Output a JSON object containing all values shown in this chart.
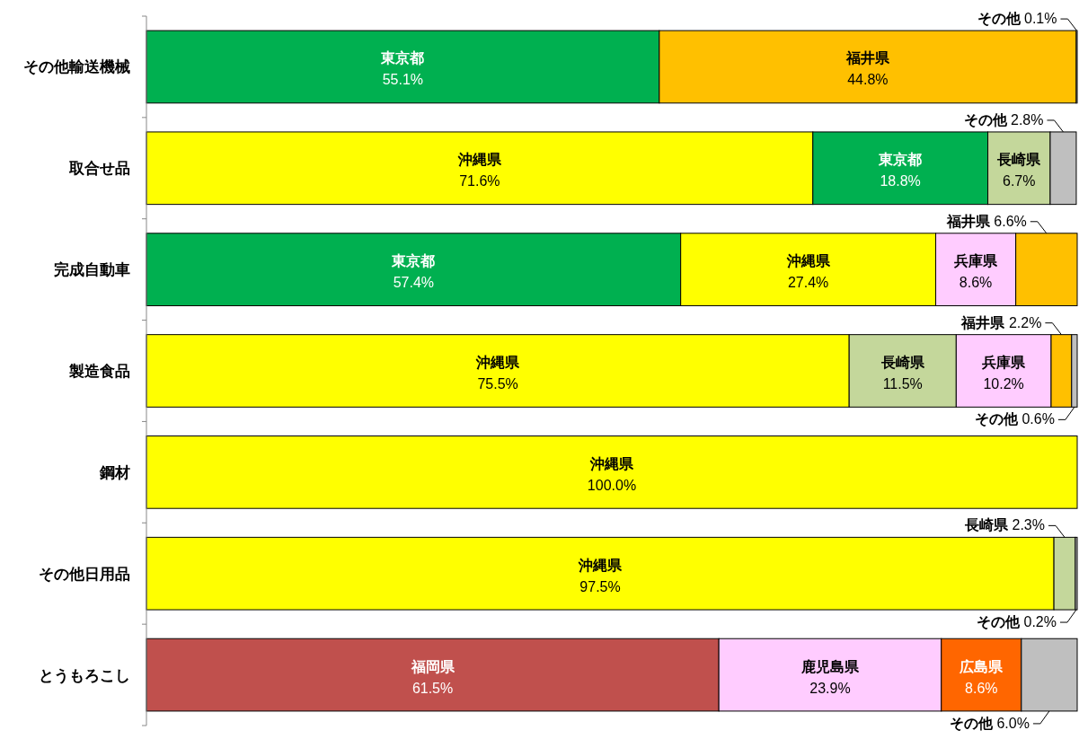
{
  "chart_data": {
    "type": "bar",
    "orientation": "horizontal",
    "stacked": true,
    "categories": [
      "その他輸送機械",
      "取合せ品",
      "完成自動車",
      "製造食品",
      "鋼材",
      "その他日用品",
      "とうもろこし"
    ],
    "xlim": [
      0,
      100
    ],
    "tick_labels": "y",
    "series": [
      {
        "values": [
          55.1,
          71.6,
          57.4,
          75.5,
          100.0,
          97.5,
          61.5
        ],
        "colors": [
          "#00b050",
          "#ffff00",
          "#00b050",
          "#ffff00",
          "#ffff00",
          "#ffff00",
          "#c0504d"
        ],
        "value_labels": [
          "東京都\n55.1%",
          "沖縄県\n71.6%",
          "東京都\n57.4%",
          "沖縄県\n75.5%",
          "沖縄県\n100.0%",
          "沖縄県\n97.5%",
          "福岡県\n61.5%"
        ]
      },
      {
        "values": [
          44.8,
          18.8,
          27.4,
          11.5,
          null,
          2.3,
          23.9
        ],
        "colors": [
          "#ffc000",
          "#00b050",
          "#ffff00",
          "#c4d79b",
          null,
          "#c4d79b",
          "#ffccff"
        ],
        "value_labels": [
          "福井県\n44.8%",
          "東京都\n18.8%",
          "沖縄県\n27.4%",
          "長崎県\n11.5%",
          null,
          "長崎県 2.3%",
          "鹿児島県\n23.9%"
        ]
      },
      {
        "values": [
          0.1,
          6.7,
          8.6,
          10.2,
          null,
          0.2,
          8.6
        ],
        "colors": [
          "#bfbfbf",
          "#c4d79b",
          "#ffccff",
          "#ffccff",
          null,
          "#bfbfbf",
          "#ff6600"
        ],
        "value_labels": [
          "その他 0.1%",
          "長崎県\n6.7%",
          "兵庫県\n8.6%",
          "兵庫県\n10.2%",
          null,
          "その他 0.2%",
          "広島県\n8.6%"
        ]
      },
      {
        "values": [
          null,
          2.8,
          6.6,
          2.2,
          null,
          null,
          6.0
        ],
        "colors": [
          null,
          "#bfbfbf",
          "#ffc000",
          "#ffc000",
          null,
          null,
          "#bfbfbf"
        ],
        "value_labels": [
          null,
          "その他 2.8%",
          "福井県 6.6%",
          "福井県 2.2%",
          null,
          null,
          "その他 6.0%"
        ]
      },
      {
        "values": [
          null,
          null,
          null,
          0.6,
          null,
          null,
          null
        ],
        "colors": [
          null,
          null,
          null,
          "#bfbfbf",
          null,
          null,
          null
        ],
        "value_labels": [
          null,
          null,
          null,
          "その他 0.6%",
          null,
          null,
          null
        ]
      }
    ]
  }
}
